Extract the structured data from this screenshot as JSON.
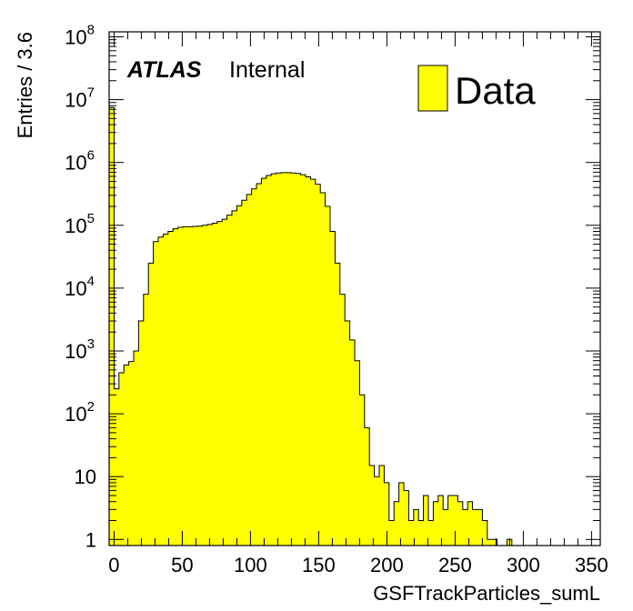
{
  "chart_data": {
    "type": "histogram",
    "title": "",
    "xlabel": "GSFTrackParticles_sumL",
    "ylabel": "Entries / 3.6",
    "xlim": [
      -3.6,
      356.4
    ],
    "ylim": [
      0.8,
      120000000
    ],
    "yscale": "log",
    "bin_width": 3.6,
    "x_start": -3.6,
    "x_ticks": [
      "0",
      "50",
      "100",
      "150",
      "200",
      "250",
      "300",
      "350"
    ],
    "x_tick_values": [
      0,
      50,
      100,
      150,
      200,
      250,
      300,
      350
    ],
    "y_ticks": [
      {
        "value": 1,
        "base": "1",
        "exp": ""
      },
      {
        "value": 10,
        "base": "10",
        "exp": ""
      },
      {
        "value": 100,
        "base": "10",
        "exp": "2"
      },
      {
        "value": 1000,
        "base": "10",
        "exp": "3"
      },
      {
        "value": 10000,
        "base": "10",
        "exp": "4"
      },
      {
        "value": 100000,
        "base": "10",
        "exp": "5"
      },
      {
        "value": 1000000,
        "base": "10",
        "exp": "6"
      },
      {
        "value": 10000000,
        "base": "10",
        "exp": "7"
      },
      {
        "value": 100000000,
        "base": "10",
        "exp": "8"
      }
    ],
    "series": [
      {
        "name": "Data",
        "color": "#ffff00",
        "line_color": "#000000",
        "values": [
          7500000,
          250,
          450,
          600,
          680,
          1000,
          3000,
          8000,
          25000,
          55000,
          65000,
          72000,
          80000,
          88000,
          93000,
          95000,
          95000,
          96000,
          97000,
          100000,
          103000,
          108000,
          115000,
          125000,
          145000,
          170000,
          205000,
          250000,
          310000,
          380000,
          460000,
          560000,
          620000,
          660000,
          680000,
          690000,
          690000,
          680000,
          670000,
          640000,
          590000,
          540000,
          450000,
          330000,
          200000,
          80000,
          25000,
          8000,
          3000,
          1500,
          700,
          200,
          60,
          15,
          10,
          15,
          8,
          2,
          4,
          8,
          6,
          2,
          3,
          2,
          5,
          2,
          4,
          5,
          3,
          5,
          5,
          4,
          3,
          4,
          3,
          3,
          2,
          1,
          1,
          0,
          0,
          1,
          0,
          0,
          0,
          0,
          0,
          0,
          0,
          0,
          0,
          0,
          0,
          0,
          0,
          0,
          0,
          0,
          0,
          0
        ]
      }
    ],
    "legend": {
      "placement": "top-right",
      "entries": [
        "Data"
      ]
    },
    "grid": false
  },
  "annotation": {
    "experiment": "ATLAS",
    "status": "Internal"
  }
}
